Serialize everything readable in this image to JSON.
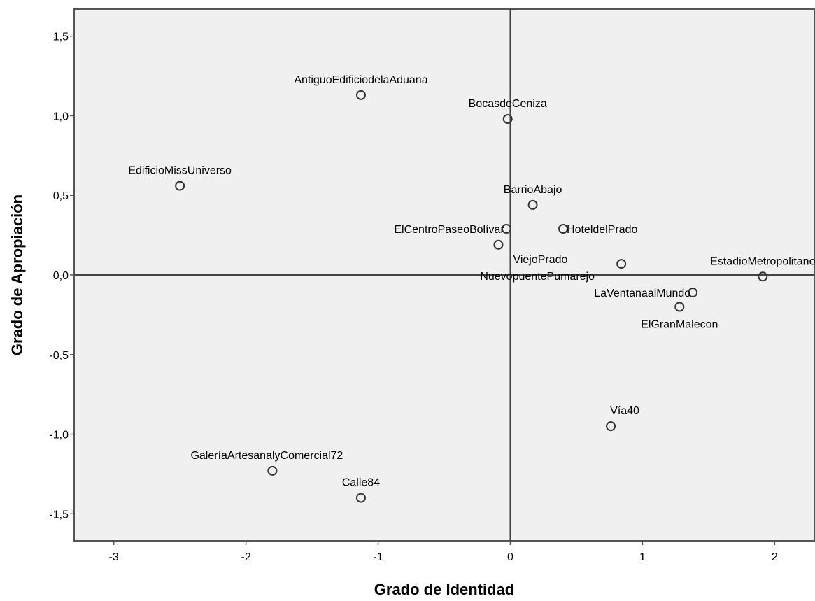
{
  "chart_data": {
    "type": "scatter",
    "title": "",
    "xlabel": "Grado de Identidad",
    "ylabel": "Grado de Apropiación",
    "xlim": [
      -3.3,
      2.3
    ],
    "ylim": [
      -1.67,
      1.67
    ],
    "xticks": [
      -3,
      -2,
      -1,
      0,
      1,
      2
    ],
    "yticks": [
      1.5,
      1.0,
      0.5,
      0.0,
      -0.5,
      -1.0,
      -1.5
    ],
    "xtick_labels": [
      "-3",
      "-2",
      "-1",
      "0",
      "1",
      "2"
    ],
    "ytick_labels": [
      "1,5",
      "1,0",
      "0,5",
      "0,0",
      "-0,5",
      "-1,0",
      "-1,5"
    ],
    "reference_lines": {
      "x": 0,
      "y": 0
    },
    "grid": false,
    "background": "#f0f0f0",
    "marker_color": "#333333",
    "points": [
      {
        "label": "AntiguoEdificiodelaAduana",
        "x": -1.13,
        "y": 1.13,
        "label_pos": "above"
      },
      {
        "label": "BocasdeCeniza",
        "x": -0.02,
        "y": 0.98,
        "label_pos": "above"
      },
      {
        "label": "EdificioMissUniverso",
        "x": -2.5,
        "y": 0.56,
        "label_pos": "above"
      },
      {
        "label": "BarrioAbajo",
        "x": 0.17,
        "y": 0.44,
        "label_pos": "above"
      },
      {
        "label": "ElCentroPaseoBolívar",
        "x": -0.03,
        "y": 0.29,
        "label_pos": "left"
      },
      {
        "label": "HoteldelPrado",
        "x": 0.4,
        "y": 0.29,
        "label_pos": "right"
      },
      {
        "label": "ViejoPrado",
        "x": -0.09,
        "y": 0.19,
        "label_pos": "below-right"
      },
      {
        "label": "NuevopuentePumarejo",
        "x": 0.84,
        "y": 0.07,
        "label_pos": "below-left"
      },
      {
        "label": "EstadioMetropolitano",
        "x": 1.91,
        "y": -0.01,
        "label_pos": "above"
      },
      {
        "label": "LaVentanaalMundo",
        "x": 1.38,
        "y": -0.11,
        "label_pos": "left"
      },
      {
        "label": "ElGranMalecon",
        "x": 1.28,
        "y": -0.2,
        "label_pos": "below"
      },
      {
        "label": "Vía40",
        "x": 0.76,
        "y": -0.95,
        "label_pos": "above-right"
      },
      {
        "label": "GaleríaArtesanalyComercial72",
        "x": -1.8,
        "y": -1.23,
        "label_pos": "above-left"
      },
      {
        "label": "Calle84",
        "x": -1.13,
        "y": -1.4,
        "label_pos": "above"
      }
    ]
  }
}
